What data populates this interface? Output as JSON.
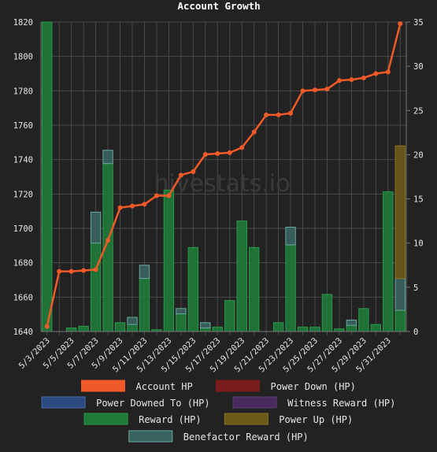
{
  "chart_data": {
    "type": "bar",
    "title": "Account Growth",
    "watermark": "hivestats.io",
    "x": [
      "5/3/2023",
      "5/4/2023",
      "5/5/2023",
      "5/6/2023",
      "5/7/2023",
      "5/8/2023",
      "5/9/2023",
      "5/10/2023",
      "5/11/2023",
      "5/12/2023",
      "5/13/2023",
      "5/14/2023",
      "5/15/2023",
      "5/16/2023",
      "5/17/2023",
      "5/18/2023",
      "5/19/2023",
      "5/20/2023",
      "5/21/2023",
      "5/22/2023",
      "5/23/2023",
      "5/24/2023",
      "5/25/2023",
      "5/26/2023",
      "5/27/2023",
      "5/28/2023",
      "5/29/2023",
      "5/30/2023",
      "5/31/2023",
      "6/1/2023"
    ],
    "x_tick_labels": [
      "5/3/2023",
      "5/5/2023",
      "5/7/2023",
      "5/9/2023",
      "5/11/2023",
      "5/13/2023",
      "5/15/2023",
      "5/17/2023",
      "5/19/2023",
      "5/21/2023",
      "5/23/2023",
      "5/25/2023",
      "5/27/2023",
      "5/29/2023",
      "5/31/2023"
    ],
    "y_left": {
      "min": 1640,
      "max": 1820,
      "ticks": [
        1640,
        1660,
        1680,
        1700,
        1720,
        1740,
        1760,
        1780,
        1800,
        1820
      ]
    },
    "y_right": {
      "min": 0,
      "max": 35,
      "ticks": [
        0,
        5,
        10,
        15,
        20,
        25,
        30,
        35
      ]
    },
    "legend_placement": "bottom",
    "legend": [
      {
        "name": "Account HP",
        "color": "#f05a28",
        "border": "#f05a28"
      },
      {
        "name": "Power Down (HP)",
        "color": "#7a1c1c",
        "border": "#7a1c1c"
      },
      {
        "name": "Power Downed To (HP)",
        "color": "#2d4a80",
        "border": "#4a6ab0"
      },
      {
        "name": "Witness Reward (HP)",
        "color": "#4a2a5e",
        "border": "#5e3a74"
      },
      {
        "name": "Reward (HP)",
        "color": "#1f7a3a",
        "border": "#2a9a48"
      },
      {
        "name": "Power Up (HP)",
        "color": "#6b5a1a",
        "border": "#8a7422"
      },
      {
        "name": "Benefactor Reward (HP)",
        "color": "#3a6360",
        "border": "#6aa8a2"
      }
    ],
    "series": [
      {
        "name": "Account HP",
        "type": "line",
        "axis": "left",
        "color": "#f05a28",
        "values": [
          1643,
          1675,
          1675,
          1675.5,
          1676,
          1693,
          1712,
          1713,
          1714,
          1719,
          1719,
          1731,
          1733,
          1743,
          1743.5,
          1744,
          1747,
          1756,
          1766,
          1766,
          1767,
          1780,
          1780.5,
          1781,
          1786,
          1786.5,
          1787.5,
          1790,
          1791,
          1819
        ]
      },
      {
        "name": "Reward (HP)",
        "type": "bar",
        "axis": "right",
        "color": "#1f7a3a",
        "values": [
          35,
          0,
          0.4,
          0.6,
          10,
          19,
          1,
          0.8,
          6,
          0.2,
          16,
          2,
          9.5,
          0.4,
          0.5,
          3.5,
          12.5,
          9.5,
          0,
          1,
          9.8,
          0.5,
          0.5,
          4.2,
          0.3,
          0.7,
          2.6,
          0.8,
          15.8,
          2.4
        ]
      },
      {
        "name": "Benefactor Reward (HP)",
        "type": "bar",
        "axis": "right",
        "color": "#3a6360",
        "values": [
          0,
          0,
          0,
          0,
          3.5,
          1.5,
          0,
          0.8,
          1.5,
          0,
          0,
          0.6,
          0,
          0.6,
          0,
          0,
          0,
          0,
          0,
          0,
          2,
          0,
          0,
          0,
          0,
          0.6,
          0,
          0,
          0,
          3.6
        ]
      },
      {
        "name": "Power Up (HP)",
        "type": "bar",
        "axis": "right",
        "color": "#6b5a1a",
        "values": [
          0,
          0,
          0,
          0,
          0,
          0,
          0,
          0,
          0,
          0,
          0,
          0,
          0,
          0,
          0,
          0,
          0,
          0,
          0,
          0,
          0,
          0,
          0,
          0,
          0,
          0,
          0,
          0,
          0,
          15
        ]
      }
    ]
  }
}
